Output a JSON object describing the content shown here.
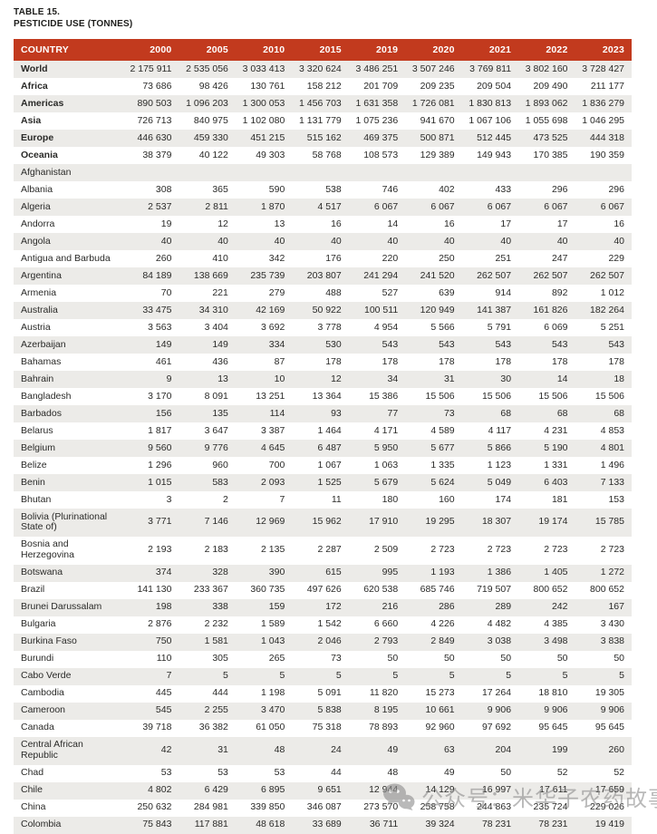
{
  "page": {
    "title_line1": "TABLE 15.",
    "title_line2": "PESTICIDE USE (TONNES)"
  },
  "colors": {
    "header_bg": "#C23A1E",
    "header_text": "#FFFFFF",
    "row_alt": "#ECEBE8",
    "text": "#2A2A28",
    "watermark": "#8F8F8F"
  },
  "table": {
    "columns": [
      "COUNTRY",
      "2000",
      "2005",
      "2010",
      "2015",
      "2019",
      "2020",
      "2021",
      "2022",
      "2023"
    ],
    "rows": [
      {
        "name": "World",
        "bold": true,
        "values": [
          "2 175 911",
          "2 535 056",
          "3 033 413",
          "3 320 624",
          "3 486 251",
          "3 507 246",
          "3 769 811",
          "3 802 160",
          "3 728 427"
        ]
      },
      {
        "name": "Africa",
        "bold": true,
        "values": [
          "73 686",
          "98 426",
          "130 761",
          "158 212",
          "201 709",
          "209 235",
          "209 504",
          "209 490",
          "211 177"
        ]
      },
      {
        "name": "Americas",
        "bold": true,
        "values": [
          "890 503",
          "1 096 203",
          "1 300 053",
          "1 456 703",
          "1 631 358",
          "1 726 081",
          "1 830 813",
          "1 893 062",
          "1 836 279"
        ]
      },
      {
        "name": "Asia",
        "bold": true,
        "values": [
          "726 713",
          "840 975",
          "1 102 080",
          "1 131 779",
          "1 075 236",
          "941 670",
          "1 067 106",
          "1 055 698",
          "1 046 295"
        ]
      },
      {
        "name": "Europe",
        "bold": true,
        "values": [
          "446 630",
          "459 330",
          "451 215",
          "515 162",
          "469 375",
          "500 871",
          "512 445",
          "473 525",
          "444 318"
        ]
      },
      {
        "name": "Oceania",
        "bold": true,
        "values": [
          "38 379",
          "40 122",
          "49 303",
          "58 768",
          "108 573",
          "129 389",
          "149 943",
          "170 385",
          "190 359"
        ]
      },
      {
        "name": "Afghanistan",
        "bold": false,
        "values": [
          "",
          "",
          "",
          "",
          "",
          "",
          "",
          "",
          ""
        ]
      },
      {
        "name": "Albania",
        "bold": false,
        "values": [
          "308",
          "365",
          "590",
          "538",
          "746",
          "402",
          "433",
          "296",
          "296"
        ]
      },
      {
        "name": "Algeria",
        "bold": false,
        "values": [
          "2 537",
          "2 811",
          "1 870",
          "4 517",
          "6 067",
          "6 067",
          "6 067",
          "6 067",
          "6 067"
        ]
      },
      {
        "name": "Andorra",
        "bold": false,
        "values": [
          "19",
          "12",
          "13",
          "16",
          "14",
          "16",
          "17",
          "17",
          "16"
        ]
      },
      {
        "name": "Angola",
        "bold": false,
        "values": [
          "40",
          "40",
          "40",
          "40",
          "40",
          "40",
          "40",
          "40",
          "40"
        ]
      },
      {
        "name": "Antigua and Barbuda",
        "bold": false,
        "values": [
          "260",
          "410",
          "342",
          "176",
          "220",
          "250",
          "251",
          "247",
          "229"
        ]
      },
      {
        "name": "Argentina",
        "bold": false,
        "values": [
          "84 189",
          "138 669",
          "235 739",
          "203 807",
          "241 294",
          "241 520",
          "262 507",
          "262 507",
          "262 507"
        ]
      },
      {
        "name": "Armenia",
        "bold": false,
        "values": [
          "70",
          "221",
          "279",
          "488",
          "527",
          "639",
          "914",
          "892",
          "1 012"
        ]
      },
      {
        "name": "Australia",
        "bold": false,
        "values": [
          "33 475",
          "34 310",
          "42 169",
          "50 922",
          "100 511",
          "120 949",
          "141 387",
          "161 826",
          "182 264"
        ]
      },
      {
        "name": "Austria",
        "bold": false,
        "values": [
          "3 563",
          "3 404",
          "3 692",
          "3 778",
          "4 954",
          "5 566",
          "5 791",
          "6 069",
          "5 251"
        ]
      },
      {
        "name": "Azerbaijan",
        "bold": false,
        "values": [
          "149",
          "149",
          "334",
          "530",
          "543",
          "543",
          "543",
          "543",
          "543"
        ]
      },
      {
        "name": "Bahamas",
        "bold": false,
        "values": [
          "461",
          "436",
          "87",
          "178",
          "178",
          "178",
          "178",
          "178",
          "178"
        ]
      },
      {
        "name": "Bahrain",
        "bold": false,
        "values": [
          "9",
          "13",
          "10",
          "12",
          "34",
          "31",
          "30",
          "14",
          "18"
        ]
      },
      {
        "name": "Bangladesh",
        "bold": false,
        "values": [
          "3 170",
          "8 091",
          "13 251",
          "13 364",
          "15 386",
          "15 506",
          "15 506",
          "15 506",
          "15 506"
        ]
      },
      {
        "name": "Barbados",
        "bold": false,
        "values": [
          "156",
          "135",
          "114",
          "93",
          "77",
          "73",
          "68",
          "68",
          "68"
        ]
      },
      {
        "name": "Belarus",
        "bold": false,
        "values": [
          "1 817",
          "3 647",
          "3 387",
          "1 464",
          "4 171",
          "4 589",
          "4 117",
          "4 231",
          "4 853"
        ]
      },
      {
        "name": "Belgium",
        "bold": false,
        "values": [
          "9 560",
          "9 776",
          "4 645",
          "6 487",
          "5 950",
          "5 677",
          "5 866",
          "5 190",
          "4 801"
        ]
      },
      {
        "name": "Belize",
        "bold": false,
        "values": [
          "1 296",
          "960",
          "700",
          "1 067",
          "1 063",
          "1 335",
          "1 123",
          "1 331",
          "1 496"
        ]
      },
      {
        "name": "Benin",
        "bold": false,
        "values": [
          "1 015",
          "583",
          "2 093",
          "1 525",
          "5 679",
          "5 624",
          "5 049",
          "6 403",
          "7 133"
        ]
      },
      {
        "name": "Bhutan",
        "bold": false,
        "values": [
          "3",
          "2",
          "7",
          "11",
          "180",
          "160",
          "174",
          "181",
          "153"
        ]
      },
      {
        "name": "Bolivia (Plurinational State of)",
        "bold": false,
        "values": [
          "3 771",
          "7 146",
          "12 969",
          "15 962",
          "17 910",
          "19 295",
          "18 307",
          "19 174",
          "15 785"
        ]
      },
      {
        "name": "Bosnia and Herzegovina",
        "bold": false,
        "values": [
          "2 193",
          "2 183",
          "2 135",
          "2 287",
          "2 509",
          "2 723",
          "2 723",
          "2 723",
          "2 723"
        ]
      },
      {
        "name": "Botswana",
        "bold": false,
        "values": [
          "374",
          "328",
          "390",
          "615",
          "995",
          "1 193",
          "1 386",
          "1 405",
          "1 272"
        ]
      },
      {
        "name": "Brazil",
        "bold": false,
        "values": [
          "141 130",
          "233 367",
          "360 735",
          "497 626",
          "620 538",
          "685 746",
          "719 507",
          "800 652",
          "800 652"
        ]
      },
      {
        "name": "Brunei Darussalam",
        "bold": false,
        "values": [
          "198",
          "338",
          "159",
          "172",
          "216",
          "286",
          "289",
          "242",
          "167"
        ]
      },
      {
        "name": "Bulgaria",
        "bold": false,
        "values": [
          "2 876",
          "2 232",
          "1 589",
          "1 542",
          "6 660",
          "4 226",
          "4 482",
          "4 385",
          "3 430"
        ]
      },
      {
        "name": "Burkina Faso",
        "bold": false,
        "values": [
          "750",
          "1 581",
          "1 043",
          "2 046",
          "2 793",
          "2 849",
          "3 038",
          "3 498",
          "3 838"
        ]
      },
      {
        "name": "Burundi",
        "bold": false,
        "values": [
          "110",
          "305",
          "265",
          "73",
          "50",
          "50",
          "50",
          "50",
          "50"
        ]
      },
      {
        "name": "Cabo Verde",
        "bold": false,
        "values": [
          "7",
          "5",
          "5",
          "5",
          "5",
          "5",
          "5",
          "5",
          "5"
        ]
      },
      {
        "name": "Cambodia",
        "bold": false,
        "values": [
          "445",
          "444",
          "1 198",
          "5 091",
          "11 820",
          "15 273",
          "17 264",
          "18 810",
          "19 305"
        ]
      },
      {
        "name": "Cameroon",
        "bold": false,
        "values": [
          "545",
          "2 255",
          "3 470",
          "5 838",
          "8 195",
          "10 661",
          "9 906",
          "9 906",
          "9 906"
        ]
      },
      {
        "name": "Canada",
        "bold": false,
        "values": [
          "39 718",
          "36 382",
          "61 050",
          "75 318",
          "78 893",
          "92 960",
          "97 692",
          "95 645",
          "95 645"
        ]
      },
      {
        "name": "Central African Republic",
        "bold": false,
        "values": [
          "42",
          "31",
          "48",
          "24",
          "49",
          "63",
          "204",
          "199",
          "260"
        ]
      },
      {
        "name": "Chad",
        "bold": false,
        "values": [
          "53",
          "53",
          "53",
          "44",
          "48",
          "49",
          "50",
          "52",
          "52"
        ]
      },
      {
        "name": "Chile",
        "bold": false,
        "values": [
          "4 802",
          "6 429",
          "6 895",
          "9 651",
          "12 944",
          "14 129",
          "16 997",
          "17 611",
          "17 659"
        ]
      },
      {
        "name": "China",
        "bold": false,
        "values": [
          "250 632",
          "284 981",
          "339 850",
          "346 087",
          "273 570",
          "258 758",
          "244 863",
          "235 724",
          "229 026"
        ]
      },
      {
        "name": "Colombia",
        "bold": false,
        "values": [
          "75 843",
          "117 881",
          "48 618",
          "33 689",
          "36 711",
          "39 324",
          "78 231",
          "78 231",
          "19 419"
        ]
      }
    ]
  },
  "watermark": {
    "icon": "wechat-icon",
    "text": "公众号：米华子农药故事吧"
  }
}
